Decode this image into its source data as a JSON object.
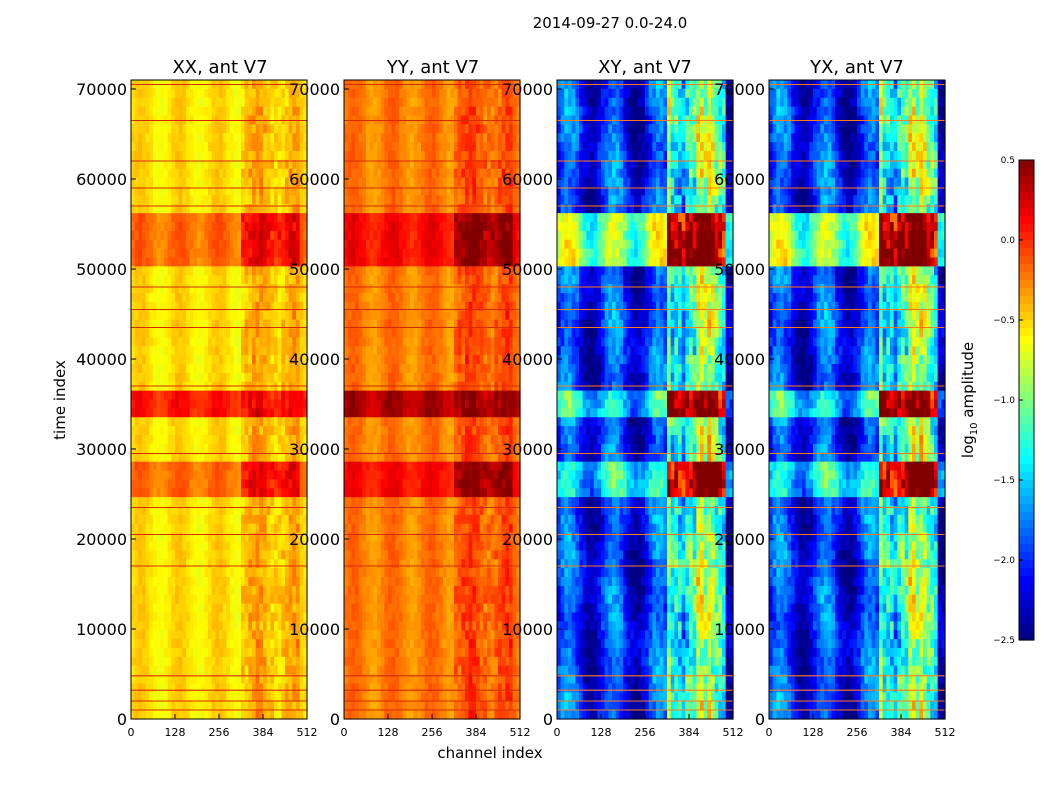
{
  "chart_data": {
    "type": "heatmap",
    "suptitle": "2014-09-27 0.0-24.0",
    "xlabel": "channel index",
    "ylabel": "time index",
    "xlim": [
      0,
      512
    ],
    "ylim": [
      0,
      71000
    ],
    "xticks": [
      0,
      128,
      256,
      384,
      512
    ],
    "xtick_labels": [
      "0",
      "128",
      "256",
      "384",
      "512"
    ],
    "yticks": [
      0,
      10000,
      20000,
      30000,
      40000,
      50000,
      60000,
      70000
    ],
    "ytick_labels": [
      "0",
      "10000",
      "20000",
      "30000",
      "40000",
      "50000",
      "60000",
      "70000"
    ],
    "panels": [
      {
        "title": "XX, ant V7",
        "kind": "auto",
        "base_level": -0.55
      },
      {
        "title": "YY, ant V7",
        "kind": "auto",
        "base_level": -0.25
      },
      {
        "title": "XY, ant V7",
        "kind": "cross",
        "base_level": -2.05
      },
      {
        "title": "YX, ant V7",
        "kind": "cross",
        "base_level": -2.05
      }
    ],
    "colorbar": {
      "label": "log10 amplitude",
      "label_main": "log",
      "label_sub": "10",
      "label_rest": " amplitude",
      "range": [
        -2.5,
        0.5
      ],
      "ticks": [
        0.5,
        0.0,
        -0.5,
        -1.0,
        -1.5,
        -2.0,
        -2.5
      ],
      "tick_labels": [
        "0.5",
        "0.0",
        "−0.5",
        "−1.0",
        "−1.5",
        "−2.0",
        "−2.5"
      ],
      "colormap": "jet"
    },
    "features": {
      "strong_rfi_channel_range": [
        320,
        490
      ],
      "strong_time_bands": [
        [
          25000,
          29000
        ],
        [
          33500,
          36500
        ],
        [
          50500,
          53000
        ],
        [
          53500,
          56000
        ]
      ],
      "flagged_time_rows": [
        1000,
        2000,
        3200,
        4800,
        17000,
        20500,
        23500,
        29500,
        37000,
        43500,
        45500,
        48000,
        57000,
        59000,
        62000,
        66500,
        70500
      ]
    }
  }
}
